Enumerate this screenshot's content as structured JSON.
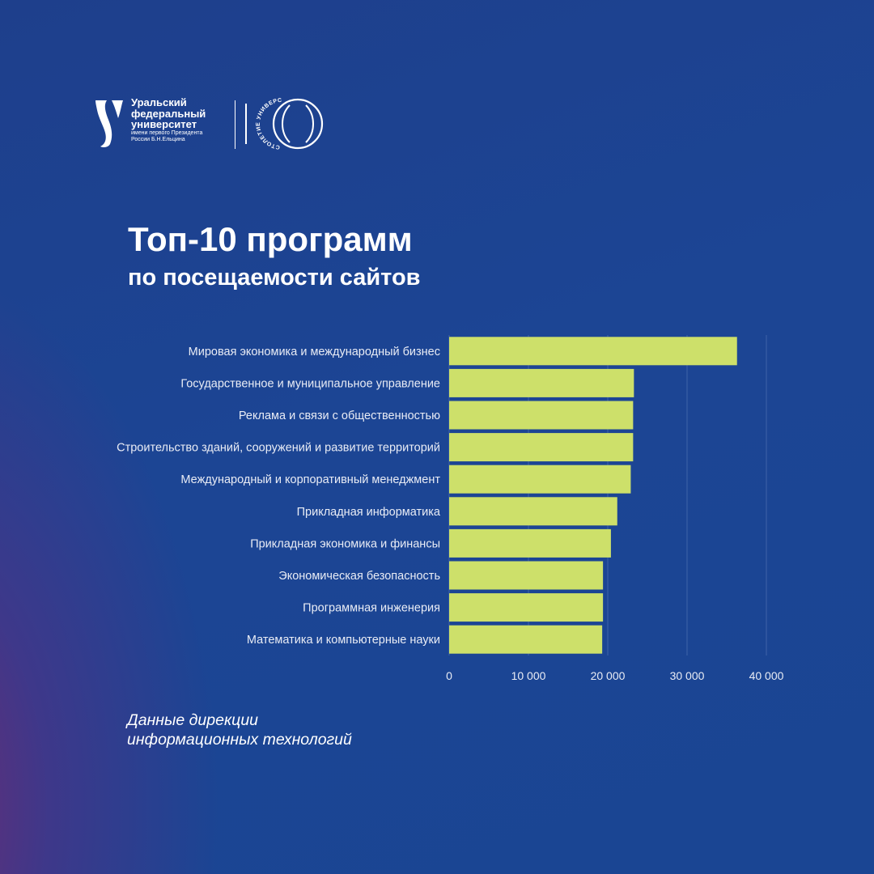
{
  "logo": {
    "lines": [
      "Уральский",
      "федеральный",
      "университет"
    ],
    "small_lines": [
      "имени первого Президента",
      "России Б.Н.Ельцина"
    ],
    "centenary_text": "СТОЛЕТИЕ УНИВЕРСИТЕТА",
    "centenary_mark": "100"
  },
  "title": "Топ-10 программ",
  "subtitle": "по посещаемости сайтов",
  "source": [
    "Данные дирекции",
    "информационных технологий"
  ],
  "chart_data": {
    "type": "bar",
    "orientation": "horizontal",
    "title": "Топ-10 программ",
    "subtitle": "по посещаемости сайтов",
    "categories": [
      "Мировая экономика и международный бизнес",
      "Государственное и муниципальное управление",
      "Реклама и связи с общественностью",
      "Строительство зданий, сооружений и развитие территорий",
      "Международный и корпоративный менеджмент",
      "Прикладная информатика",
      "Прикладная экономика и финансы",
      "Экономическая безопасность",
      "Программная инженерия",
      "Математика и компьютерные науки"
    ],
    "values": [
      36300,
      23300,
      23200,
      23200,
      22900,
      21200,
      20400,
      19400,
      19400,
      19300
    ],
    "xlim": [
      0,
      40000
    ],
    "xticks": [
      0,
      10000,
      20000,
      30000,
      40000
    ],
    "xtick_labels": [
      "0",
      "10 000",
      "20 000",
      "30 000",
      "40 000"
    ],
    "grid": "vertical",
    "bar_color": "#cde06a",
    "grid_color": "#3f63a8"
  }
}
